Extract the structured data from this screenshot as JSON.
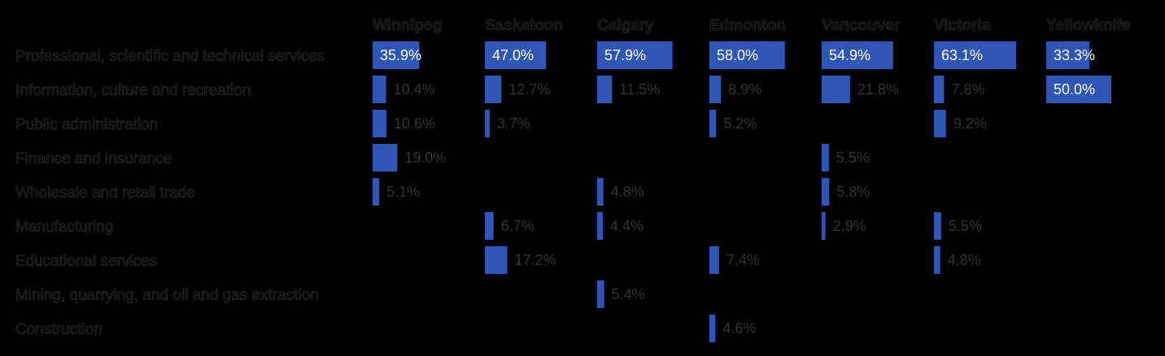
{
  "chart_data": {
    "type": "bar",
    "bar_color": "#2f56b4",
    "background": "#000000",
    "columns": [
      "Winnipeg",
      "Saskatoon",
      "Calgary",
      "Edmonton",
      "Vancouver",
      "Victoria",
      "Yellowknife"
    ],
    "categories": [
      "Professional, scientific and technical services",
      "Information, culture and recreation",
      "Public administration",
      "Finance and insurance",
      "Wholesale and retail trade",
      "Manufacturing",
      "Educational services",
      "Mining, quarrying, and oil and gas extraction",
      "Construction"
    ],
    "series": [
      {
        "name": "Winnipeg",
        "values": [
          35.9,
          10.4,
          10.6,
          19.0,
          5.1,
          null,
          null,
          null,
          null
        ]
      },
      {
        "name": "Saskatoon",
        "values": [
          47.0,
          12.7,
          3.7,
          null,
          null,
          6.7,
          17.2,
          null,
          null
        ]
      },
      {
        "name": "Calgary",
        "values": [
          57.9,
          11.5,
          null,
          null,
          4.8,
          4.4,
          null,
          5.4,
          null
        ]
      },
      {
        "name": "Edmonton",
        "values": [
          58.0,
          8.9,
          5.2,
          null,
          null,
          null,
          7.4,
          null,
          4.6
        ]
      },
      {
        "name": "Vancouver",
        "values": [
          54.9,
          21.8,
          null,
          5.5,
          5.8,
          2.9,
          null,
          null,
          null
        ]
      },
      {
        "name": "Victoria",
        "values": [
          63.1,
          7.8,
          9.2,
          null,
          null,
          5.5,
          4.8,
          null,
          null
        ]
      },
      {
        "name": "Yellowknife",
        "values": [
          33.3,
          50.0,
          null,
          null,
          null,
          null,
          null,
          null,
          null
        ]
      }
    ],
    "value_suffix": "%",
    "xlim": [
      0,
      65
    ],
    "grid": false,
    "legend": "none"
  }
}
